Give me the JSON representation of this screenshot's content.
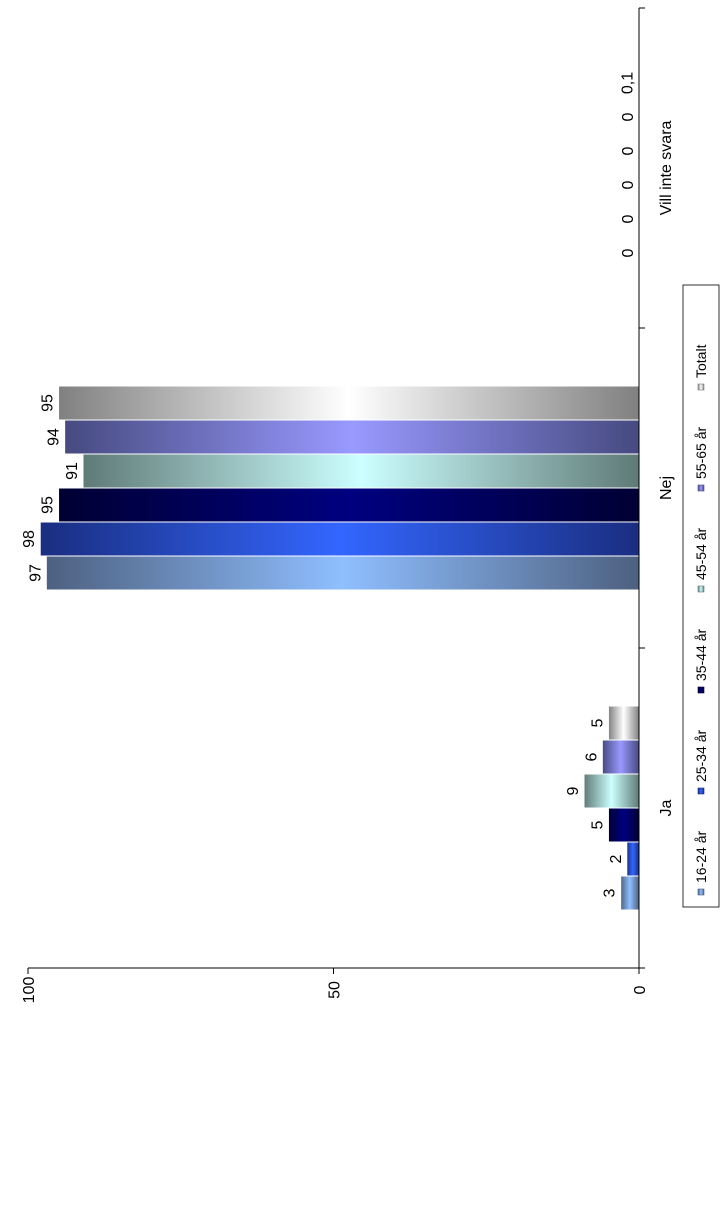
{
  "chart_data": {
    "type": "bar",
    "orientation": "rotated-90-ccw",
    "categories": [
      "Ja",
      "Nej",
      "Vill inte svara"
    ],
    "series": [
      {
        "name": "16-24 år",
        "values": [
          3,
          97,
          0
        ],
        "labels": [
          "3",
          "97",
          "0"
        ],
        "color": "#8fbfff",
        "edge": "#4d6080"
      },
      {
        "name": "25-34 år",
        "values": [
          2,
          98,
          0
        ],
        "labels": [
          "2",
          "98",
          "0"
        ],
        "color": "#3366ff",
        "edge": "#1a2e80"
      },
      {
        "name": "35-44 år",
        "values": [
          5,
          95,
          0
        ],
        "labels": [
          "5",
          "95",
          "0"
        ],
        "color": "#000080",
        "edge": "#000033"
      },
      {
        "name": "45-54 år",
        "values": [
          9,
          91,
          0
        ],
        "labels": [
          "9",
          "91",
          "0"
        ],
        "color": "#ccffff",
        "edge": "#5f7a77"
      },
      {
        "name": "55-65 år",
        "values": [
          6,
          94,
          0
        ],
        "labels": [
          "6",
          "94",
          "0"
        ],
        "color": "#9999ff",
        "edge": "#464a80"
      },
      {
        "name": "Totalt",
        "values": [
          5,
          95,
          0.1
        ],
        "labels": [
          "5",
          "95",
          "0,1"
        ],
        "color": "#ffffff",
        "edge": "#808080"
      }
    ],
    "ylim": [
      0,
      100
    ],
    "yticks": [
      "0",
      "50",
      "100"
    ],
    "legend_position": "right",
    "grid": false
  }
}
